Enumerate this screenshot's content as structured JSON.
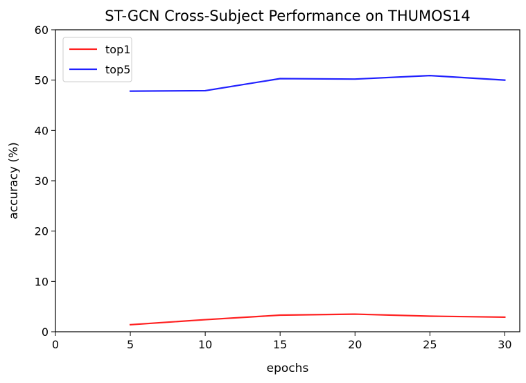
{
  "chart_data": {
    "type": "line",
    "title": "ST-GCN Cross-Subject Performance on THUMOS14",
    "xlabel": "epochs",
    "ylabel": "accuracy (%)",
    "xlim": [
      0,
      31
    ],
    "ylim": [
      0,
      60
    ],
    "xticks": [
      0,
      5,
      10,
      15,
      20,
      25,
      30
    ],
    "yticks": [
      0,
      10,
      20,
      30,
      40,
      50,
      60
    ],
    "grid": false,
    "legend_position": "upper-left",
    "x": [
      5,
      10,
      15,
      20,
      25,
      30
    ],
    "series": [
      {
        "name": "top1",
        "color": "#ff2020",
        "values": [
          1.4,
          2.4,
          3.3,
          3.5,
          3.1,
          2.9
        ]
      },
      {
        "name": "top5",
        "color": "#2020ff",
        "values": [
          47.8,
          47.9,
          50.3,
          50.2,
          50.9,
          50.0
        ]
      }
    ]
  }
}
